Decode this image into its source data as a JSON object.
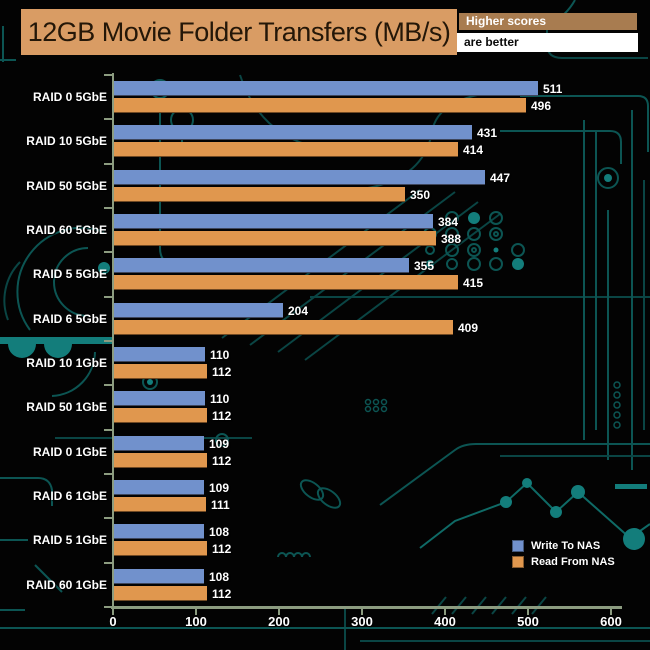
{
  "header": {
    "title": "12GB Movie Folder Transfers (MB/s)",
    "note_line1": "Higher scores",
    "note_line2": "are better"
  },
  "colors": {
    "title_bg": "#d99c64",
    "note1_bg": "#a87c50",
    "note2_bg": "#ffffff",
    "bar_write": "#7191cc",
    "bar_read": "#e0974e",
    "axis": "#8c9c80",
    "background": "#030303",
    "circuit_trace": "#0e5e5c"
  },
  "chart_data": {
    "type": "bar",
    "orientation": "horizontal",
    "title": "12GB Movie Folder Transfers (MB/s)",
    "categories": [
      "RAID 0 5GbE",
      "RAID 10 5GbE",
      "RAID 50 5GbE",
      "RAID 60 5GbE",
      "RAID 5 5GbE",
      "RAID 6 5GbE",
      "RAID 10 1GbE",
      "RAID 50 1GbE",
      "RAID 0 1GbE",
      "RAID 6 1GbE",
      "RAID 5 1GbE",
      "RAID 60 1GbE"
    ],
    "series": [
      {
        "name": "Write To NAS",
        "color": "#7191cc",
        "values": [
          511,
          431,
          447,
          384,
          355,
          204,
          110,
          110,
          109,
          109,
          108,
          108
        ]
      },
      {
        "name": "Read From NAS",
        "color": "#e0974e",
        "values": [
          496,
          414,
          350,
          388,
          415,
          409,
          112,
          112,
          112,
          111,
          112,
          112
        ]
      }
    ],
    "xlabel": "",
    "ylabel": "",
    "xlim": [
      0,
      600
    ],
    "x_ticks": [
      0,
      100,
      200,
      300,
      400,
      500,
      600
    ],
    "grid": false,
    "legend_position": "bottom-right",
    "value_labels": true
  }
}
